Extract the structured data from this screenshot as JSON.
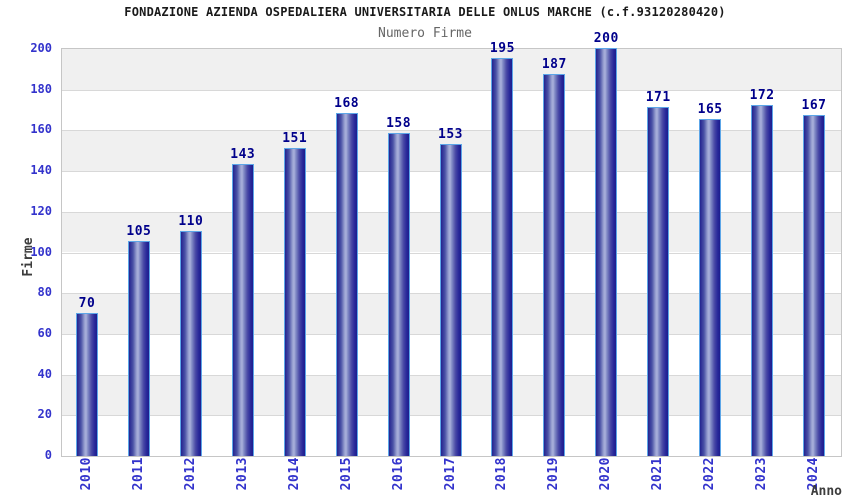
{
  "title": "FONDAZIONE AZIENDA OSPEDALIERA UNIVERSITARIA DELLE ONLUS MARCHE (c.f.93120280420)",
  "subtitle": "Numero Firme",
  "chart_data": {
    "type": "bar",
    "title": "FONDAZIONE AZIENDA OSPEDALIERA UNIVERSITARIA DELLE ONLUS MARCHE (c.f.93120280420)",
    "subtitle": "Numero Firme",
    "xlabel": "Anno",
    "ylabel": "Firme",
    "categories": [
      "2010",
      "2011",
      "2012",
      "2013",
      "2014",
      "2015",
      "2016",
      "2017",
      "2018",
      "2019",
      "2020",
      "2021",
      "2022",
      "2023",
      "2024"
    ],
    "values": [
      70,
      105,
      110,
      143,
      151,
      168,
      158,
      153,
      195,
      187,
      200,
      171,
      165,
      172,
      167
    ],
    "ylim": [
      0,
      200
    ],
    "yticks": [
      0,
      20,
      40,
      60,
      80,
      100,
      120,
      140,
      160,
      180,
      200
    ],
    "grid": "horizontal alternating bands, gridlines every 20",
    "legend": "none",
    "colors": {
      "bar_edge": "#1d1d8d",
      "bar_highlight": "#aab1dc",
      "bar_border": "#5ca6e8",
      "value_label": "#00008b",
      "axis_tick_label": "#3333cc",
      "band": "#f0f0f0",
      "gridline": "#d8d8d8",
      "plot_border": "#c6c6c6",
      "title_text": "#1a1a1a",
      "subtitle_text": "#666666"
    }
  }
}
